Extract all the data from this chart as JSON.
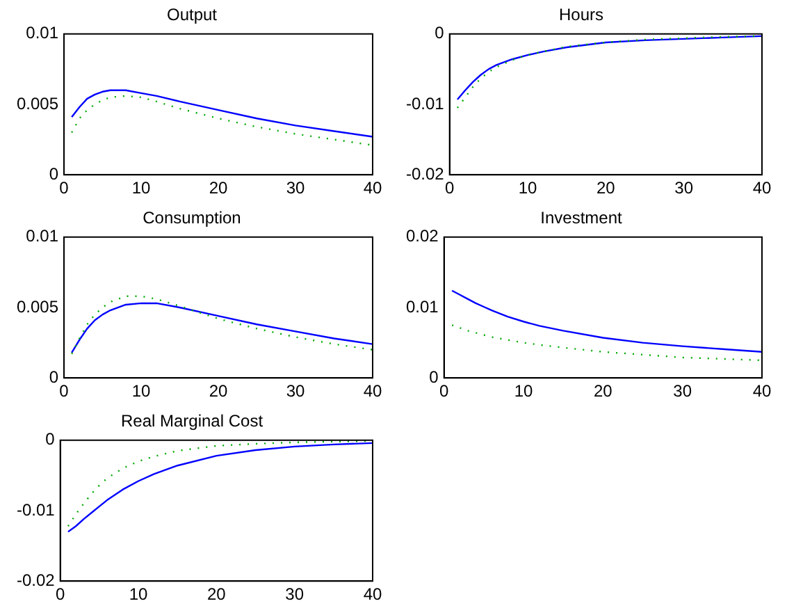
{
  "chart_data": [
    {
      "type": "line",
      "title": "Output",
      "x": [
        1,
        2,
        3,
        4,
        5,
        6,
        8,
        10,
        12,
        15,
        20,
        25,
        30,
        35,
        40
      ],
      "xlim": [
        0,
        40
      ],
      "xticks": [
        0,
        10,
        20,
        30,
        40
      ],
      "ylim": [
        0,
        0.01
      ],
      "yticks": [
        0,
        0.005,
        0.01
      ],
      "series": [
        {
          "color": "#0000ff",
          "line_style": "solid",
          "values": [
            0.0041,
            0.0048,
            0.0054,
            0.0057,
            0.0059,
            0.006,
            0.006,
            0.0058,
            0.0056,
            0.0052,
            0.0046,
            0.004,
            0.0035,
            0.0031,
            0.0027
          ]
        },
        {
          "color": "#00aa00",
          "line_style": "dotted",
          "values": [
            0.003,
            0.004,
            0.0046,
            0.005,
            0.0053,
            0.0055,
            0.0056,
            0.0055,
            0.0052,
            0.0047,
            0.004,
            0.0034,
            0.0029,
            0.0025,
            0.0021
          ]
        }
      ]
    },
    {
      "type": "line",
      "title": "Hours",
      "x": [
        1,
        2,
        3,
        4,
        5,
        6,
        8,
        10,
        12,
        15,
        20,
        25,
        30,
        35,
        40
      ],
      "xlim": [
        0,
        40
      ],
      "xticks": [
        0,
        10,
        20,
        30,
        40
      ],
      "ylim": [
        -0.02,
        0
      ],
      "yticks": [
        -0.02,
        -0.01,
        0
      ],
      "series": [
        {
          "color": "#0000ff",
          "line_style": "solid",
          "values": [
            -0.0093,
            -0.008,
            -0.0068,
            -0.0058,
            -0.005,
            -0.0044,
            -0.0036,
            -0.003,
            -0.0025,
            -0.0019,
            -0.0012,
            -0.0009,
            -0.0007,
            -0.0005,
            -0.0003
          ]
        },
        {
          "color": "#00aa00",
          "line_style": "dotted",
          "values": [
            -0.0105,
            -0.009,
            -0.0075,
            -0.0063,
            -0.0054,
            -0.0047,
            -0.0037,
            -0.003,
            -0.0025,
            -0.0018,
            -0.0012,
            -0.0008,
            -0.0006,
            -0.0004,
            -0.0003
          ]
        }
      ]
    },
    {
      "type": "line",
      "title": "Consumption",
      "x": [
        1,
        2,
        3,
        4,
        5,
        6,
        8,
        10,
        12,
        15,
        20,
        25,
        30,
        35,
        40
      ],
      "xlim": [
        0,
        40
      ],
      "xticks": [
        0,
        10,
        20,
        30,
        40
      ],
      "ylim": [
        0,
        0.01
      ],
      "yticks": [
        0,
        0.005,
        0.01
      ],
      "series": [
        {
          "color": "#0000ff",
          "line_style": "solid",
          "values": [
            0.0018,
            0.0027,
            0.0035,
            0.0041,
            0.0045,
            0.0048,
            0.0052,
            0.0053,
            0.0053,
            0.005,
            0.0044,
            0.0038,
            0.0033,
            0.0028,
            0.0024
          ]
        },
        {
          "color": "#00aa00",
          "line_style": "dotted",
          "values": [
            0.0017,
            0.0028,
            0.0038,
            0.0045,
            0.005,
            0.0054,
            0.0058,
            0.0058,
            0.0056,
            0.0051,
            0.0042,
            0.0035,
            0.0029,
            0.0024,
            0.002
          ]
        }
      ]
    },
    {
      "type": "line",
      "title": "Investment",
      "x": [
        1,
        2,
        3,
        4,
        5,
        6,
        8,
        10,
        12,
        15,
        20,
        25,
        30,
        35,
        40
      ],
      "xlim": [
        0,
        40
      ],
      "xticks": [
        0,
        10,
        20,
        30,
        40
      ],
      "ylim": [
        0,
        0.02
      ],
      "yticks": [
        0,
        0.01,
        0.02
      ],
      "series": [
        {
          "color": "#0000ff",
          "line_style": "solid",
          "values": [
            0.0124,
            0.0118,
            0.0112,
            0.0106,
            0.0101,
            0.0096,
            0.0087,
            0.008,
            0.0074,
            0.0067,
            0.0057,
            0.005,
            0.0045,
            0.0041,
            0.0037
          ]
        },
        {
          "color": "#00aa00",
          "line_style": "dotted",
          "values": [
            0.0075,
            0.0071,
            0.0067,
            0.0064,
            0.0061,
            0.0058,
            0.0054,
            0.005,
            0.0047,
            0.0043,
            0.0037,
            0.0033,
            0.0029,
            0.0027,
            0.0025
          ]
        }
      ]
    },
    {
      "type": "line",
      "title": "Real Marginal Cost",
      "x": [
        1,
        2,
        3,
        4,
        5,
        6,
        8,
        10,
        12,
        15,
        20,
        25,
        30,
        35,
        40
      ],
      "xlim": [
        0,
        40
      ],
      "xticks": [
        0,
        10,
        20,
        30,
        40
      ],
      "ylim": [
        -0.02,
        0
      ],
      "yticks": [
        -0.02,
        -0.01,
        0
      ],
      "series": [
        {
          "color": "#0000ff",
          "line_style": "solid",
          "values": [
            -0.013,
            -0.0122,
            -0.0112,
            -0.0103,
            -0.0094,
            -0.0085,
            -0.007,
            -0.0058,
            -0.0048,
            -0.0036,
            -0.0022,
            -0.0014,
            -0.0009,
            -0.0006,
            -0.0004
          ]
        },
        {
          "color": "#00aa00",
          "line_style": "dotted",
          "values": [
            -0.0122,
            -0.0105,
            -0.009,
            -0.0076,
            -0.0064,
            -0.0054,
            -0.004,
            -0.003,
            -0.0023,
            -0.0015,
            -0.0008,
            -0.0005,
            -0.0003,
            -0.0002,
            -0.0001
          ]
        }
      ]
    }
  ]
}
